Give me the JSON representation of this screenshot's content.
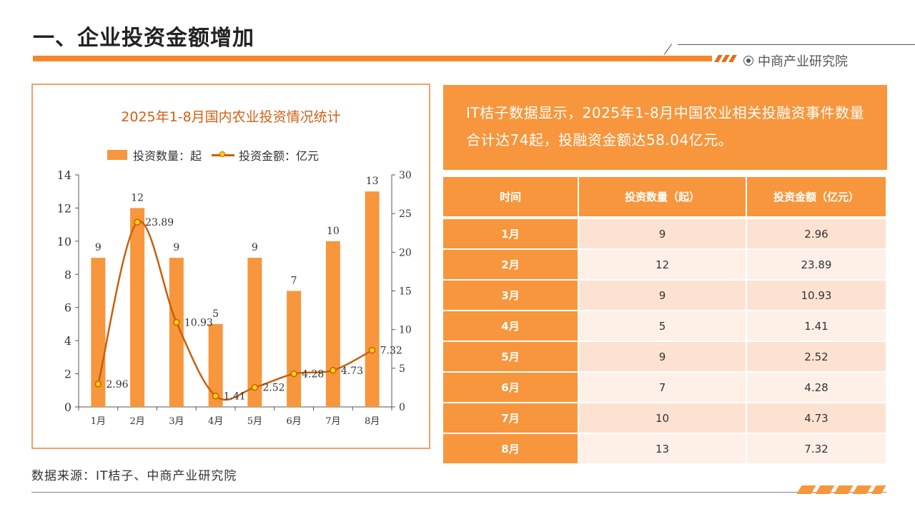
{
  "page": {
    "title": "一、企业投资金额增加",
    "brand": "中商产业研究院",
    "source": "数据来源：IT桔子、中商产业研究院"
  },
  "colors": {
    "accent": "#f7963c",
    "line": "#c7600e",
    "marker": "#ffd400",
    "title_text": "#d35f14"
  },
  "summary": "IT桔子数据显示，2025年1-8月中国农业相关投融资事件数量合计达74起，投融资金额达58.04亿元。",
  "table": {
    "headers": [
      "时间",
      "投资数量（起）",
      "投资金额（亿元）"
    ],
    "rows": [
      [
        "1月",
        "9",
        "2.96"
      ],
      [
        "2月",
        "12",
        "23.89"
      ],
      [
        "3月",
        "9",
        "10.93"
      ],
      [
        "4月",
        "5",
        "1.41"
      ],
      [
        "5月",
        "9",
        "2.52"
      ],
      [
        "6月",
        "7",
        "4.28"
      ],
      [
        "7月",
        "10",
        "4.73"
      ],
      [
        "8月",
        "13",
        "7.32"
      ]
    ]
  },
  "chart_data": {
    "type": "bar",
    "title": "2025年1-8月国内农业投资情况统计",
    "categories": [
      "1月",
      "2月",
      "3月",
      "4月",
      "5月",
      "6月",
      "7月",
      "8月"
    ],
    "series": [
      {
        "name": "投资数量：起",
        "type": "bar",
        "axis": "left",
        "values": [
          9,
          12,
          9,
          5,
          9,
          7,
          10,
          13
        ]
      },
      {
        "name": "投资金额：亿元",
        "type": "line",
        "axis": "right",
        "values": [
          2.96,
          23.89,
          10.93,
          1.41,
          2.52,
          4.28,
          4.73,
          7.32
        ]
      }
    ],
    "y_left": {
      "range": [
        0,
        14
      ],
      "ticks": [
        0,
        2,
        4,
        6,
        8,
        10,
        12,
        14
      ]
    },
    "y_right": {
      "range": [
        0,
        30
      ],
      "ticks": [
        0,
        5,
        10,
        15,
        20,
        25,
        30
      ]
    },
    "legend_position": "top",
    "grid": false
  }
}
